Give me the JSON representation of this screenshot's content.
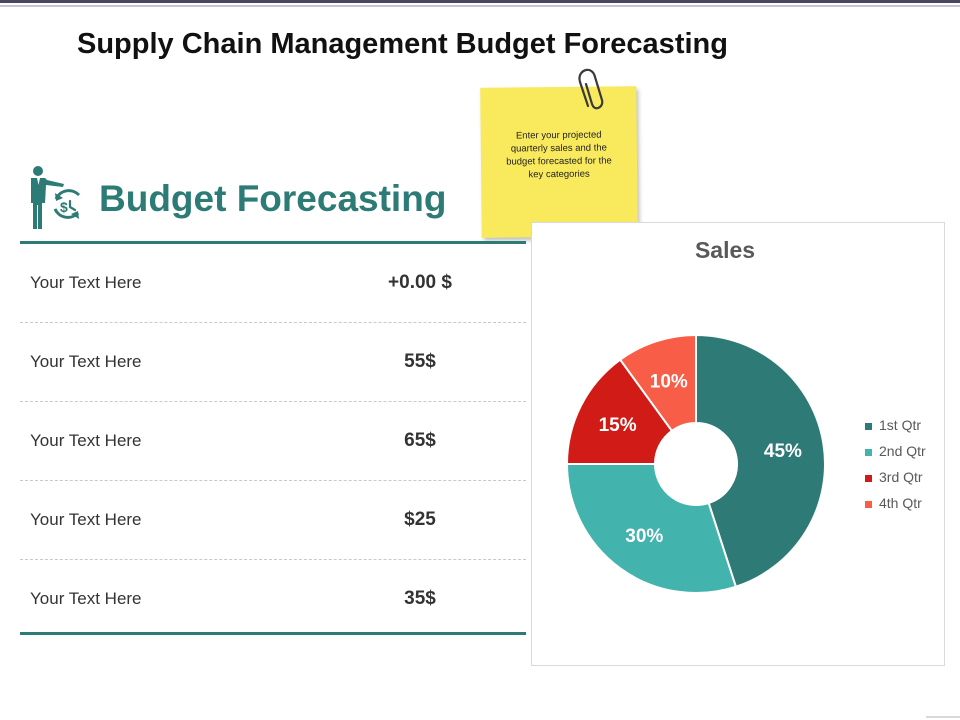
{
  "slide": {
    "title": "Supply Chain Management Budget Forecasting"
  },
  "sticky_note": {
    "text": "Enter your projected quarterly sales and the budget forecasted for the key categories"
  },
  "section": {
    "heading": "Budget Forecasting",
    "icon": "presenter-budget-cycle-icon"
  },
  "table": {
    "rows": [
      {
        "label": "Your Text Here",
        "value": "+0.00 $"
      },
      {
        "label": "Your Text Here",
        "value": "55$"
      },
      {
        "label": "Your Text Here",
        "value": "65$"
      },
      {
        "label": "Your Text Here",
        "value": "$25"
      },
      {
        "label": "Your Text Here",
        "value": "35$"
      }
    ]
  },
  "colors": {
    "accent": "#2c7b76",
    "note": "#f9ea5d"
  },
  "chart_data": {
    "type": "pie",
    "variant": "doughnut",
    "title": "Sales",
    "categories": [
      "1st Qtr",
      "2nd Qtr",
      "3rd Qtr",
      "4th Qtr"
    ],
    "values": [
      45,
      30,
      15,
      10
    ],
    "data_labels": [
      "45%",
      "30%",
      "15%",
      "10%"
    ],
    "colors": [
      "#2d7a76",
      "#43b3ae",
      "#d11b16",
      "#f75d47"
    ],
    "legend_position": "right"
  }
}
